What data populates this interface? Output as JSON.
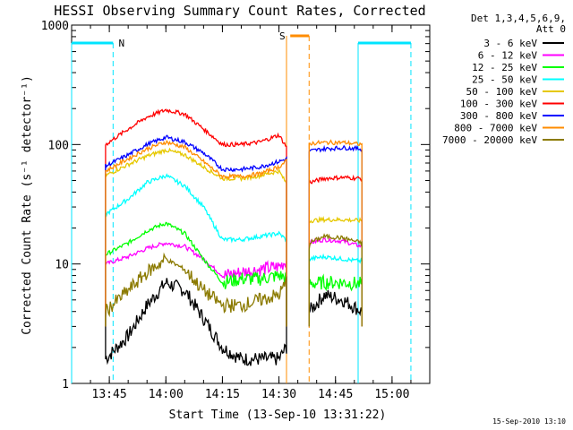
{
  "chart_data": {
    "type": "line",
    "title": "HESSI Observing Summary Count Rates, Corrected",
    "xlabel": "Start Time (13-Sep-10 13:31:22)",
    "ylabel": "Corrected Count Rate (s⁻¹ detector⁻¹)",
    "ylim": [
      1,
      1000
    ],
    "yscale": "log",
    "xlim_minutes": [
      "13:35",
      "15:10"
    ],
    "x_tick_labels": [
      "13:45",
      "14:00",
      "14:15",
      "14:30",
      "14:45",
      "15:00"
    ],
    "y_tick_labels": [
      "1",
      "10",
      "100",
      "1000"
    ],
    "timestamp": "15-Sep-2010 13:10",
    "legend_header": [
      "Det 1,3,4,5,6,9,",
      "Att 0"
    ],
    "legend": [
      {
        "label": "3 - 6 keV",
        "color": "#000000"
      },
      {
        "label": "6 - 12 keV",
        "color": "#ff00ff"
      },
      {
        "label": "12 - 25 keV",
        "color": "#00ff00"
      },
      {
        "label": "25 - 50 keV",
        "color": "#00ffff"
      },
      {
        "label": "50 - 100 keV",
        "color": "#e6c800"
      },
      {
        "label": "100 - 300 keV",
        "color": "#ff0000"
      },
      {
        "label": "300 - 800 keV",
        "color": "#0000ff"
      },
      {
        "label": "800 - 7000 keV",
        "color": "#ff8c00"
      },
      {
        "label": "7000 - 20000 keV",
        "color": "#8b7a00"
      }
    ],
    "flags": {
      "night_label": "N",
      "saa_label": "S"
    },
    "segments_minutes": [
      {
        "start": "13:44",
        "end": "14:32"
      },
      {
        "start": "14:38",
        "end": "14:52"
      }
    ],
    "series": [
      {
        "name": "3 - 6 keV",
        "color": "#000000",
        "t": [
          "13:44",
          "13:50",
          "13:55",
          "14:00",
          "14:05",
          "14:10",
          "14:15",
          "14:20",
          "14:25",
          "14:30",
          "14:38",
          "14:42",
          "14:47",
          "14:52"
        ],
        "values": [
          1.6,
          2.5,
          4.5,
          7,
          6,
          3.5,
          2,
          1.6,
          1.6,
          1.6,
          4,
          5.5,
          5,
          4
        ]
      },
      {
        "name": "6 - 12 keV",
        "color": "#ff00ff",
        "t": [
          "13:44",
          "13:50",
          "13:55",
          "14:00",
          "14:05",
          "14:10",
          "14:15",
          "14:20",
          "14:25",
          "14:30",
          "14:38",
          "14:42",
          "14:47",
          "14:52"
        ],
        "values": [
          10,
          11.5,
          13.5,
          15,
          14,
          11,
          8,
          8.5,
          9,
          9.5,
          15,
          16,
          15.5,
          14
        ]
      },
      {
        "name": "12 - 25 keV",
        "color": "#00ff00",
        "t": [
          "13:44",
          "13:50",
          "13:55",
          "14:00",
          "14:05",
          "14:10",
          "14:15",
          "14:20",
          "14:25",
          "14:30",
          "14:38",
          "14:42",
          "14:47",
          "14:52"
        ],
        "values": [
          12,
          15,
          19,
          22,
          18,
          11,
          7,
          7.5,
          7.5,
          8,
          6.8,
          7,
          7,
          6.8
        ]
      },
      {
        "name": "25 - 50 keV",
        "color": "#00ffff",
        "t": [
          "13:44",
          "13:50",
          "13:55",
          "14:00",
          "14:05",
          "14:10",
          "14:15",
          "14:20",
          "14:25",
          "14:30",
          "14:38",
          "14:42",
          "14:47",
          "14:52"
        ],
        "values": [
          26,
          35,
          48,
          55,
          45,
          30,
          16,
          16,
          17,
          18,
          11,
          11.5,
          11,
          10.5
        ]
      },
      {
        "name": "50 - 100 keV",
        "color": "#e6c800",
        "t": [
          "13:44",
          "13:50",
          "13:55",
          "14:00",
          "14:05",
          "14:10",
          "14:15",
          "14:20",
          "14:25",
          "14:30",
          "14:38",
          "14:42",
          "14:47",
          "14:52"
        ],
        "values": [
          55,
          68,
          80,
          90,
          82,
          65,
          52,
          52,
          55,
          60,
          23,
          23.5,
          23.5,
          23
        ]
      },
      {
        "name": "100 - 300 keV",
        "color": "#ff0000",
        "t": [
          "13:44",
          "13:50",
          "13:55",
          "14:00",
          "14:05",
          "14:10",
          "14:15",
          "14:20",
          "14:25",
          "14:30",
          "14:38",
          "14:42",
          "14:47",
          "14:52"
        ],
        "values": [
          100,
          135,
          170,
          195,
          180,
          135,
          100,
          100,
          105,
          120,
          48,
          52,
          53,
          52
        ]
      },
      {
        "name": "300 - 800 keV",
        "color": "#0000ff",
        "t": [
          "13:44",
          "13:50",
          "13:55",
          "14:00",
          "14:05",
          "14:10",
          "14:15",
          "14:20",
          "14:25",
          "14:30",
          "14:38",
          "14:42",
          "14:47",
          "14:52"
        ],
        "values": [
          66,
          82,
          100,
          115,
          105,
          85,
          62,
          62,
          65,
          72,
          88,
          92,
          94,
          92
        ]
      },
      {
        "name": "800 - 7000 keV",
        "color": "#ff8c00",
        "t": [
          "13:44",
          "13:50",
          "13:55",
          "14:00",
          "14:05",
          "14:10",
          "14:15",
          "14:20",
          "14:25",
          "14:30",
          "14:38",
          "14:42",
          "14:47",
          "14:52"
        ],
        "values": [
          60,
          76,
          92,
          105,
          95,
          72,
          54,
          54,
          57,
          65,
          102,
          104,
          104,
          100
        ]
      },
      {
        "name": "7000 - 20000 keV",
        "color": "#8b7a00",
        "t": [
          "13:44",
          "13:50",
          "13:55",
          "14:00",
          "14:05",
          "14:10",
          "14:15",
          "14:20",
          "14:25",
          "14:30",
          "14:38",
          "14:42",
          "14:47",
          "14:52"
        ],
        "values": [
          4,
          6,
          8.5,
          11,
          9,
          6,
          4.5,
          4.5,
          5,
          5.5,
          15,
          17,
          16.5,
          15
        ]
      }
    ]
  }
}
